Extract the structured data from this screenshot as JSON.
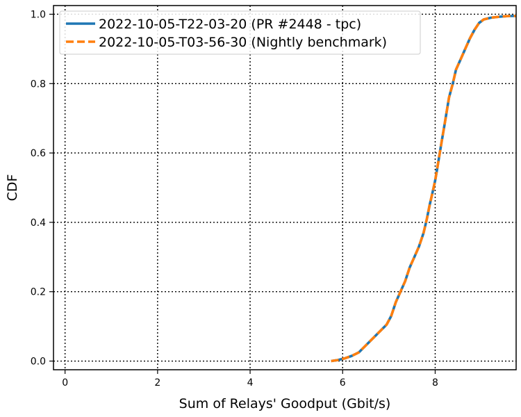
{
  "chart_data": {
    "type": "line",
    "title": "",
    "xlabel": "Sum of Relays' Goodput (Gbit/s)",
    "ylabel": "CDF",
    "xlim": [
      -0.25,
      9.75
    ],
    "ylim": [
      -0.025,
      1.025
    ],
    "xticks": [
      0,
      2,
      4,
      6,
      8
    ],
    "yticks": [
      0.0,
      0.2,
      0.4,
      0.6,
      0.8,
      1.0
    ],
    "xtick_labels": [
      "0",
      "2",
      "4",
      "6",
      "8"
    ],
    "ytick_labels": [
      "0.0",
      "0.2",
      "0.4",
      "0.6",
      "0.8",
      "1.0"
    ],
    "grid": true,
    "legend_position": "top-left",
    "series": [
      {
        "name": "2022-10-05-T22-03-20 (PR #2448 - tpc)",
        "color": "#1f77b4",
        "style": "solid",
        "x": [
          5.75,
          5.9,
          6.05,
          6.2,
          6.35,
          6.5,
          6.65,
          6.8,
          6.95,
          7.05,
          7.15,
          7.25,
          7.35,
          7.45,
          7.55,
          7.65,
          7.75,
          7.82,
          7.88,
          7.95,
          8.0,
          8.05,
          8.1,
          8.15,
          8.2,
          8.25,
          8.3,
          8.38,
          8.45,
          8.55,
          8.65,
          8.75,
          8.85,
          8.95,
          9.05,
          9.2,
          9.4,
          9.6,
          9.75
        ],
        "y": [
          0.0,
          0.003,
          0.008,
          0.015,
          0.025,
          0.045,
          0.065,
          0.085,
          0.105,
          0.13,
          0.17,
          0.2,
          0.23,
          0.27,
          0.3,
          0.33,
          0.37,
          0.41,
          0.45,
          0.49,
          0.52,
          0.56,
          0.6,
          0.64,
          0.68,
          0.72,
          0.76,
          0.8,
          0.84,
          0.87,
          0.9,
          0.93,
          0.955,
          0.975,
          0.985,
          0.99,
          0.993,
          0.995,
          0.995
        ]
      },
      {
        "name": "2022-10-05-T03-56-30 (Nightly benchmark)",
        "color": "#ff7f0e",
        "style": "dashed",
        "x": [
          5.75,
          5.9,
          6.05,
          6.2,
          6.35,
          6.5,
          6.65,
          6.8,
          6.95,
          7.05,
          7.15,
          7.25,
          7.35,
          7.45,
          7.55,
          7.65,
          7.75,
          7.82,
          7.88,
          7.95,
          8.0,
          8.05,
          8.1,
          8.15,
          8.2,
          8.25,
          8.3,
          8.38,
          8.45,
          8.55,
          8.65,
          8.75,
          8.85,
          8.95,
          9.05,
          9.2,
          9.4,
          9.6,
          9.75
        ],
        "y": [
          0.0,
          0.003,
          0.008,
          0.015,
          0.025,
          0.045,
          0.065,
          0.085,
          0.105,
          0.13,
          0.17,
          0.2,
          0.23,
          0.27,
          0.3,
          0.33,
          0.37,
          0.41,
          0.45,
          0.49,
          0.52,
          0.56,
          0.6,
          0.64,
          0.68,
          0.72,
          0.76,
          0.8,
          0.84,
          0.87,
          0.9,
          0.93,
          0.955,
          0.975,
          0.985,
          0.99,
          0.993,
          0.995,
          0.995
        ]
      }
    ]
  }
}
